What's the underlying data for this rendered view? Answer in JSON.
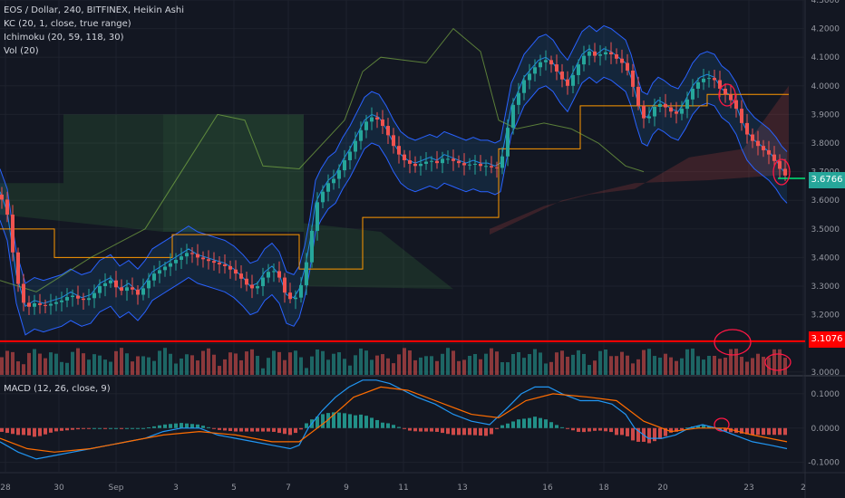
{
  "legend": {
    "title": "EOS / Dollar, 240, BITFINEX, Heikin Ashi",
    "kc": "KC (20, 1, close, true range)",
    "ichimoku": "Ichimoku (20, 59, 118, 30)",
    "vol": "Vol (20)"
  },
  "macd_legend": "MACD (12, 26, close, 9)",
  "price_tags": {
    "last": "3.6766",
    "line": "3.1076"
  },
  "colors": {
    "up": "#26a69a",
    "down": "#ef5350",
    "background": "#131722",
    "hline": "#ff0000"
  },
  "chart_data": [
    {
      "type": "candlestick",
      "title": "EOS / Dollar, 240, BITFINEX, Heikin Ashi",
      "x_ticks": [
        "28",
        "30",
        "Sep",
        "3",
        "5",
        "7",
        "9",
        "11",
        "13",
        "16",
        "18",
        "20",
        "23",
        "2"
      ],
      "y_ticks": [
        "4.3000",
        "4.2000",
        "4.1000",
        "4.0000",
        "3.9000",
        "3.8000",
        "3.7000",
        "3.6000",
        "3.5000",
        "3.4000",
        "3.3000",
        "3.2000",
        "3.1000",
        "3.0000"
      ],
      "ylim": [
        2.99,
        4.3
      ],
      "last_price": 3.6766,
      "horizontal_line": 3.1076,
      "close_path": [
        [
          0,
          3.62
        ],
        [
          8,
          3.55
        ],
        [
          18,
          3.33
        ],
        [
          28,
          3.22
        ],
        [
          38,
          3.24
        ],
        [
          48,
          3.23
        ],
        [
          58,
          3.24
        ],
        [
          68,
          3.25
        ],
        [
          78,
          3.27
        ],
        [
          90,
          3.25
        ],
        [
          100,
          3.26
        ],
        [
          110,
          3.3
        ],
        [
          122,
          3.32
        ],
        [
          132,
          3.28
        ],
        [
          142,
          3.3
        ],
        [
          152,
          3.27
        ],
        [
          160,
          3.3
        ],
        [
          168,
          3.34
        ],
        [
          178,
          3.36
        ],
        [
          188,
          3.38
        ],
        [
          198,
          3.4
        ],
        [
          208,
          3.42
        ],
        [
          218,
          3.4
        ],
        [
          228,
          3.39
        ],
        [
          238,
          3.38
        ],
        [
          248,
          3.37
        ],
        [
          258,
          3.35
        ],
        [
          268,
          3.32
        ],
        [
          276,
          3.29
        ],
        [
          284,
          3.3
        ],
        [
          292,
          3.34
        ],
        [
          300,
          3.36
        ],
        [
          308,
          3.33
        ],
        [
          316,
          3.26
        ],
        [
          324,
          3.25
        ],
        [
          330,
          3.28
        ],
        [
          336,
          3.35
        ],
        [
          342,
          3.45
        ],
        [
          348,
          3.58
        ],
        [
          354,
          3.62
        ],
        [
          362,
          3.66
        ],
        [
          370,
          3.68
        ],
        [
          378,
          3.73
        ],
        [
          386,
          3.77
        ],
        [
          394,
          3.82
        ],
        [
          402,
          3.87
        ],
        [
          410,
          3.89
        ],
        [
          418,
          3.88
        ],
        [
          426,
          3.84
        ],
        [
          434,
          3.79
        ],
        [
          442,
          3.75
        ],
        [
          450,
          3.73
        ],
        [
          458,
          3.72
        ],
        [
          466,
          3.73
        ],
        [
          474,
          3.74
        ],
        [
          482,
          3.73
        ],
        [
          490,
          3.75
        ],
        [
          498,
          3.74
        ],
        [
          506,
          3.73
        ],
        [
          514,
          3.72
        ],
        [
          522,
          3.73
        ],
        [
          530,
          3.72
        ],
        [
          538,
          3.72
        ],
        [
          546,
          3.71
        ],
        [
          552,
          3.72
        ],
        [
          558,
          3.82
        ],
        [
          564,
          3.92
        ],
        [
          570,
          3.96
        ],
        [
          578,
          4.02
        ],
        [
          586,
          4.05
        ],
        [
          594,
          4.08
        ],
        [
          602,
          4.09
        ],
        [
          610,
          4.07
        ],
        [
          618,
          4.03
        ],
        [
          626,
          4.0
        ],
        [
          634,
          4.05
        ],
        [
          642,
          4.1
        ],
        [
          650,
          4.12
        ],
        [
          658,
          4.1
        ],
        [
          666,
          4.12
        ],
        [
          674,
          4.11
        ],
        [
          682,
          4.09
        ],
        [
          690,
          4.07
        ],
        [
          696,
          4.02
        ],
        [
          702,
          3.95
        ],
        [
          708,
          3.89
        ],
        [
          714,
          3.88
        ],
        [
          720,
          3.92
        ],
        [
          726,
          3.94
        ],
        [
          732,
          3.93
        ],
        [
          740,
          3.91
        ],
        [
          748,
          3.9
        ],
        [
          756,
          3.94
        ],
        [
          764,
          3.99
        ],
        [
          772,
          4.02
        ],
        [
          780,
          4.03
        ],
        [
          788,
          4.02
        ],
        [
          796,
          3.98
        ],
        [
          804,
          3.96
        ],
        [
          812,
          3.92
        ],
        [
          818,
          3.87
        ],
        [
          824,
          3.83
        ],
        [
          832,
          3.8
        ],
        [
          840,
          3.78
        ],
        [
          848,
          3.76
        ],
        [
          856,
          3.73
        ],
        [
          862,
          3.7
        ],
        [
          868,
          3.68
        ]
      ],
      "macd_ylim": [
        -0.13,
        0.15
      ],
      "macd_ticks": [
        "0.1000",
        "0.0000",
        "-0.1000"
      ],
      "macd_path": [
        [
          0,
          -0.04
        ],
        [
          20,
          -0.07
        ],
        [
          40,
          -0.09
        ],
        [
          60,
          -0.08
        ],
        [
          80,
          -0.07
        ],
        [
          100,
          -0.06
        ],
        [
          120,
          -0.05
        ],
        [
          140,
          -0.04
        ],
        [
          160,
          -0.03
        ],
        [
          180,
          -0.01
        ],
        [
          200,
          0.0
        ],
        [
          220,
          0.0
        ],
        [
          240,
          -0.02
        ],
        [
          260,
          -0.03
        ],
        [
          280,
          -0.04
        ],
        [
          300,
          -0.05
        ],
        [
          320,
          -0.06
        ],
        [
          330,
          -0.05
        ],
        [
          340,
          0.0
        ],
        [
          355,
          0.05
        ],
        [
          370,
          0.09
        ],
        [
          385,
          0.12
        ],
        [
          400,
          0.14
        ],
        [
          415,
          0.14
        ],
        [
          430,
          0.13
        ],
        [
          445,
          0.11
        ],
        [
          460,
          0.09
        ],
        [
          480,
          0.07
        ],
        [
          500,
          0.04
        ],
        [
          520,
          0.02
        ],
        [
          540,
          0.01
        ],
        [
          560,
          0.06
        ],
        [
          575,
          0.1
        ],
        [
          590,
          0.12
        ],
        [
          605,
          0.12
        ],
        [
          620,
          0.1
        ],
        [
          640,
          0.08
        ],
        [
          660,
          0.08
        ],
        [
          675,
          0.07
        ],
        [
          690,
          0.04
        ],
        [
          700,
          0.0
        ],
        [
          715,
          -0.03
        ],
        [
          730,
          -0.03
        ],
        [
          745,
          -0.02
        ],
        [
          760,
          0.0
        ],
        [
          775,
          0.01
        ],
        [
          790,
          0.0
        ],
        [
          810,
          -0.02
        ],
        [
          830,
          -0.04
        ],
        [
          850,
          -0.05
        ],
        [
          868,
          -0.06
        ]
      ],
      "macd_signal_path": [
        [
          0,
          -0.03
        ],
        [
          30,
          -0.06
        ],
        [
          60,
          -0.07
        ],
        [
          100,
          -0.06
        ],
        [
          140,
          -0.04
        ],
        [
          180,
          -0.02
        ],
        [
          220,
          -0.01
        ],
        [
          260,
          -0.02
        ],
        [
          300,
          -0.04
        ],
        [
          330,
          -0.04
        ],
        [
          360,
          0.02
        ],
        [
          390,
          0.09
        ],
        [
          420,
          0.12
        ],
        [
          450,
          0.11
        ],
        [
          480,
          0.08
        ],
        [
          520,
          0.04
        ],
        [
          550,
          0.03
        ],
        [
          580,
          0.08
        ],
        [
          610,
          0.1
        ],
        [
          650,
          0.09
        ],
        [
          680,
          0.08
        ],
        [
          710,
          0.02
        ],
        [
          740,
          -0.01
        ],
        [
          770,
          0.0
        ],
        [
          800,
          0.0
        ],
        [
          830,
          -0.02
        ],
        [
          868,
          -0.04
        ]
      ]
    }
  ]
}
